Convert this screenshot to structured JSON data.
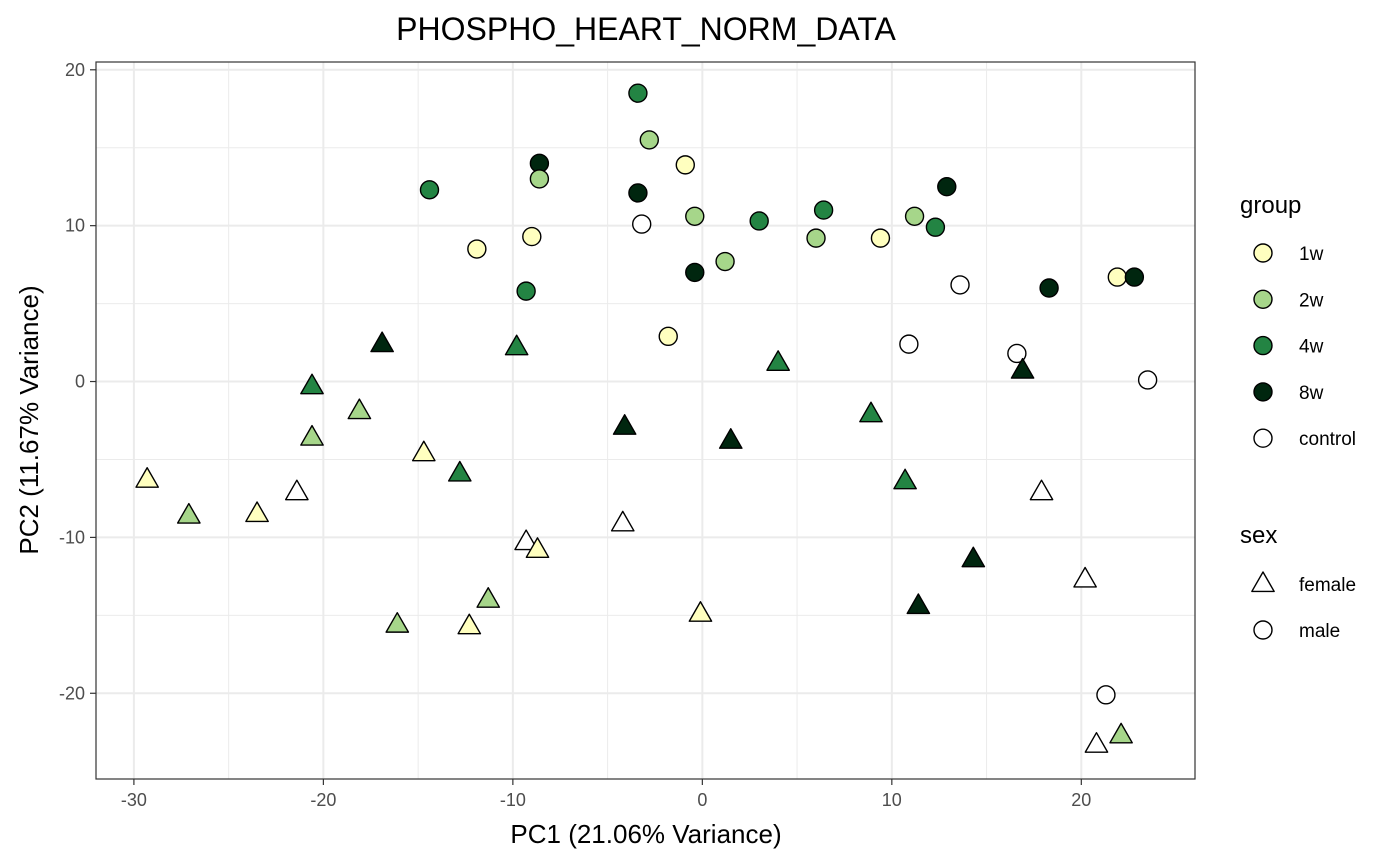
{
  "chart_data": {
    "type": "scatter",
    "title": "PHOSPHO_HEART_NORM_DATA",
    "xlabel": "PC1 (21.06% Variance)",
    "ylabel": "PC2 (11.67% Variance)",
    "xlim": [
      -32,
      26
    ],
    "ylim": [
      -25.5,
      20.5
    ],
    "x_ticks": [
      -30,
      -20,
      -10,
      0,
      10,
      20
    ],
    "y_ticks": [
      -20,
      -10,
      0,
      10,
      20
    ],
    "x_tick_labels": [
      "-30",
      "-20",
      "-10",
      "0",
      "10",
      "20"
    ],
    "y_tick_labels": [
      "-20",
      "-10",
      "0",
      "10",
      "20"
    ],
    "grid": true,
    "theme": "bw",
    "legend_position": "right",
    "legend": {
      "group_title": "group",
      "groups": [
        {
          "label": "1w",
          "color": "#ffffbf"
        },
        {
          "label": "2w",
          "color": "#a6d68a"
        },
        {
          "label": "4w",
          "color": "#238443"
        },
        {
          "label": "8w",
          "color": "#00260f"
        },
        {
          "label": "control",
          "color": "#ffffff"
        }
      ],
      "sex_title": "sex",
      "sexes": [
        {
          "label": "female",
          "shape": "triangle"
        },
        {
          "label": "male",
          "shape": "circle"
        }
      ]
    },
    "points": [
      {
        "x": -3.4,
        "y": 18.5,
        "group": "4w",
        "sex": "male"
      },
      {
        "x": -2.8,
        "y": 15.5,
        "group": "2w",
        "sex": "male"
      },
      {
        "x": -8.6,
        "y": 14.0,
        "group": "8w",
        "sex": "male"
      },
      {
        "x": -0.9,
        "y": 13.9,
        "group": "1w",
        "sex": "male"
      },
      {
        "x": -8.6,
        "y": 13.0,
        "group": "2w",
        "sex": "male"
      },
      {
        "x": 12.9,
        "y": 12.5,
        "group": "8w",
        "sex": "male"
      },
      {
        "x": -14.4,
        "y": 12.3,
        "group": "4w",
        "sex": "male"
      },
      {
        "x": -3.4,
        "y": 12.1,
        "group": "8w",
        "sex": "male"
      },
      {
        "x": 6.4,
        "y": 11.0,
        "group": "4w",
        "sex": "male"
      },
      {
        "x": 11.2,
        "y": 10.6,
        "group": "2w",
        "sex": "male"
      },
      {
        "x": -0.4,
        "y": 10.6,
        "group": "2w",
        "sex": "male"
      },
      {
        "x": 3.0,
        "y": 10.3,
        "group": "4w",
        "sex": "male"
      },
      {
        "x": -3.2,
        "y": 10.1,
        "group": "control",
        "sex": "male"
      },
      {
        "x": 12.3,
        "y": 9.9,
        "group": "4w",
        "sex": "male"
      },
      {
        "x": -9.0,
        "y": 9.3,
        "group": "1w",
        "sex": "male"
      },
      {
        "x": 6.0,
        "y": 9.2,
        "group": "2w",
        "sex": "male"
      },
      {
        "x": 9.4,
        "y": 9.2,
        "group": "1w",
        "sex": "male"
      },
      {
        "x": -11.9,
        "y": 8.5,
        "group": "1w",
        "sex": "male"
      },
      {
        "x": 1.2,
        "y": 7.7,
        "group": "2w",
        "sex": "male"
      },
      {
        "x": -0.4,
        "y": 7.0,
        "group": "8w",
        "sex": "male"
      },
      {
        "x": 21.9,
        "y": 6.7,
        "group": "1w",
        "sex": "male"
      },
      {
        "x": 22.8,
        "y": 6.7,
        "group": "8w",
        "sex": "male"
      },
      {
        "x": 13.6,
        "y": 6.2,
        "group": "control",
        "sex": "male"
      },
      {
        "x": 18.3,
        "y": 6.0,
        "group": "8w",
        "sex": "male"
      },
      {
        "x": -9.3,
        "y": 5.8,
        "group": "4w",
        "sex": "male"
      },
      {
        "x": -1.8,
        "y": 2.9,
        "group": "1w",
        "sex": "male"
      },
      {
        "x": 10.9,
        "y": 2.4,
        "group": "control",
        "sex": "male"
      },
      {
        "x": 16.6,
        "y": 1.8,
        "group": "control",
        "sex": "male"
      },
      {
        "x": 23.5,
        "y": 0.1,
        "group": "control",
        "sex": "male"
      },
      {
        "x": 21.3,
        "y": -20.1,
        "group": "control",
        "sex": "male"
      },
      {
        "x": -16.9,
        "y": 2.4,
        "group": "8w",
        "sex": "female"
      },
      {
        "x": -9.8,
        "y": 2.2,
        "group": "4w",
        "sex": "female"
      },
      {
        "x": 4.0,
        "y": 1.2,
        "group": "4w",
        "sex": "female"
      },
      {
        "x": 16.9,
        "y": 0.7,
        "group": "8w",
        "sex": "female"
      },
      {
        "x": -20.6,
        "y": -0.3,
        "group": "4w",
        "sex": "female"
      },
      {
        "x": -18.1,
        "y": -1.9,
        "group": "2w",
        "sex": "female"
      },
      {
        "x": 8.9,
        "y": -2.1,
        "group": "4w",
        "sex": "female"
      },
      {
        "x": -4.1,
        "y": -2.9,
        "group": "8w",
        "sex": "female"
      },
      {
        "x": -20.6,
        "y": -3.6,
        "group": "2w",
        "sex": "female"
      },
      {
        "x": 1.5,
        "y": -3.8,
        "group": "8w",
        "sex": "female"
      },
      {
        "x": -14.7,
        "y": -4.6,
        "group": "1w",
        "sex": "female"
      },
      {
        "x": -12.8,
        "y": -5.9,
        "group": "4w",
        "sex": "female"
      },
      {
        "x": -29.3,
        "y": -6.3,
        "group": "1w",
        "sex": "female"
      },
      {
        "x": 10.7,
        "y": -6.4,
        "group": "4w",
        "sex": "female"
      },
      {
        "x": -21.4,
        "y": -7.1,
        "group": "control",
        "sex": "female"
      },
      {
        "x": 17.9,
        "y": -7.1,
        "group": "control",
        "sex": "female"
      },
      {
        "x": -23.5,
        "y": -8.5,
        "group": "1w",
        "sex": "female"
      },
      {
        "x": -27.1,
        "y": -8.6,
        "group": "2w",
        "sex": "female"
      },
      {
        "x": -4.2,
        "y": -9.1,
        "group": "control",
        "sex": "female"
      },
      {
        "x": -9.3,
        "y": -10.3,
        "group": "control",
        "sex": "female"
      },
      {
        "x": -8.7,
        "y": -10.8,
        "group": "1w",
        "sex": "female"
      },
      {
        "x": 14.3,
        "y": -11.4,
        "group": "8w",
        "sex": "female"
      },
      {
        "x": 20.2,
        "y": -12.7,
        "group": "control",
        "sex": "female"
      },
      {
        "x": -11.3,
        "y": -14.0,
        "group": "2w",
        "sex": "female"
      },
      {
        "x": 11.4,
        "y": -14.4,
        "group": "8w",
        "sex": "female"
      },
      {
        "x": -0.1,
        "y": -14.9,
        "group": "1w",
        "sex": "female"
      },
      {
        "x": -16.1,
        "y": -15.6,
        "group": "2w",
        "sex": "female"
      },
      {
        "x": -12.3,
        "y": -15.7,
        "group": "1w",
        "sex": "female"
      },
      {
        "x": 20.8,
        "y": -23.3,
        "group": "control",
        "sex": "female"
      },
      {
        "x": 22.1,
        "y": -22.7,
        "group": "2w",
        "sex": "female"
      }
    ]
  }
}
